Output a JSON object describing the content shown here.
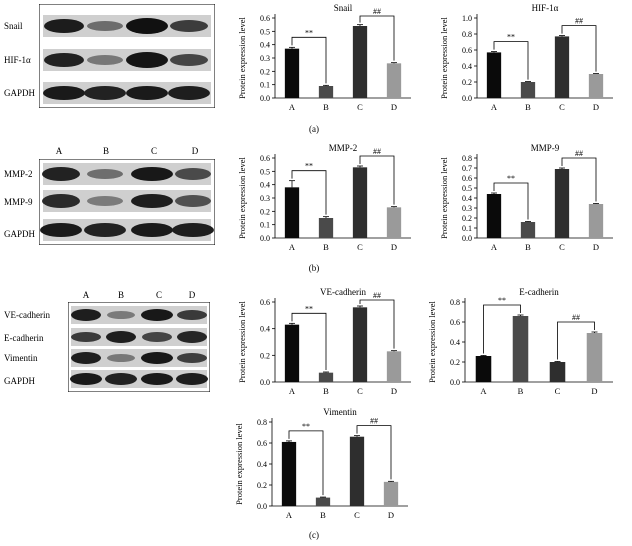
{
  "panels": [
    {
      "id": "a",
      "panel_label": "(a)",
      "blot": {
        "lane_letters": [],
        "bands": [
          "Snail",
          "HIF-1α",
          "GAPDH"
        ]
      }
    },
    {
      "id": "b",
      "panel_label": "(b)",
      "blot": {
        "lane_letters": [
          "A",
          "B",
          "C",
          "D"
        ],
        "bands": [
          "MMP-2",
          "MMP-9",
          "GAPDH"
        ]
      }
    },
    {
      "id": "c",
      "panel_label": "(c)",
      "blot": {
        "lane_letters": [
          "A",
          "B",
          "C",
          "D"
        ],
        "bands": [
          "VE-cadherin",
          "E-cadherin",
          "Vimentin",
          "GAPDH"
        ]
      }
    }
  ],
  "bar_colors": [
    "#0a0a0a",
    "#4a4a4a",
    "#2e2e2e",
    "#9a9a9a"
  ],
  "chart_data": [
    {
      "type": "bar",
      "title": "Snail",
      "ylabel": "Protein expression level",
      "categories": [
        "A",
        "B",
        "C",
        "D"
      ],
      "values": [
        0.37,
        0.09,
        0.54,
        0.26
      ],
      "errors": [
        0.01,
        0.005,
        0.01,
        0.005
      ],
      "ylim": [
        0,
        0.6
      ],
      "yticks": [
        "0.0",
        "0.1",
        "0.2",
        "0.3",
        "0.4",
        "0.5",
        "0.6"
      ],
      "brackets": [
        {
          "from": 0,
          "to": 1,
          "label": "**"
        },
        {
          "from": 2,
          "to": 3,
          "label": "##"
        }
      ]
    },
    {
      "type": "bar",
      "title": "HIF-1α",
      "ylabel": "Protein expression level",
      "categories": [
        "A",
        "B",
        "C",
        "D"
      ],
      "values": [
        0.57,
        0.2,
        0.77,
        0.3
      ],
      "errors": [
        0.01,
        0.005,
        0.01,
        0.005
      ],
      "ylim": [
        0,
        1.0
      ],
      "yticks": [
        "0.0",
        "0.2",
        "0.4",
        "0.6",
        "0.8",
        "1.0"
      ],
      "brackets": [
        {
          "from": 0,
          "to": 1,
          "label": "**"
        },
        {
          "from": 2,
          "to": 3,
          "label": "##"
        }
      ]
    },
    {
      "type": "bar",
      "title": "MMP-2",
      "ylabel": "Protein expression level",
      "categories": [
        "A",
        "B",
        "C",
        "D"
      ],
      "values": [
        0.38,
        0.15,
        0.53,
        0.23
      ],
      "errors": [
        0.05,
        0.01,
        0.01,
        0.005
      ],
      "ylim": [
        0,
        0.6
      ],
      "yticks": [
        "0.0",
        "0.1",
        "0.2",
        "0.3",
        "0.4",
        "0.5",
        "0.6"
      ],
      "brackets": [
        {
          "from": 0,
          "to": 1,
          "label": "**"
        },
        {
          "from": 2,
          "to": 3,
          "label": "##"
        }
      ]
    },
    {
      "type": "bar",
      "title": "MMP-9",
      "ylabel": "Protein expression level",
      "categories": [
        "A",
        "B",
        "C",
        "D"
      ],
      "values": [
        0.44,
        0.16,
        0.69,
        0.34
      ],
      "errors": [
        0.01,
        0.005,
        0.01,
        0.005
      ],
      "ylim": [
        0,
        0.8
      ],
      "yticks": [
        "0.0",
        "0.1",
        "0.2",
        "0.3",
        "0.4",
        "0.5",
        "0.6",
        "0.7",
        "0.8"
      ],
      "brackets": [
        {
          "from": 0,
          "to": 1,
          "label": "**"
        },
        {
          "from": 2,
          "to": 3,
          "label": "##"
        }
      ]
    },
    {
      "type": "bar",
      "title": "VE-cadherin",
      "ylabel": "Protein expression level",
      "categories": [
        "A",
        "B",
        "C",
        "D"
      ],
      "values": [
        0.43,
        0.07,
        0.56,
        0.23
      ],
      "errors": [
        0.01,
        0.005,
        0.01,
        0.005
      ],
      "ylim": [
        0,
        0.6
      ],
      "yticks": [
        "0.0",
        "0.2",
        "0.4",
        "0.6"
      ],
      "brackets": [
        {
          "from": 0,
          "to": 1,
          "label": "**"
        },
        {
          "from": 2,
          "to": 3,
          "label": "##"
        }
      ]
    },
    {
      "type": "bar",
      "title": "E-cadherin",
      "ylabel": "Protein expression level",
      "categories": [
        "A",
        "B",
        "C",
        "D"
      ],
      "values": [
        0.26,
        0.66,
        0.2,
        0.49
      ],
      "errors": [
        0.005,
        0.01,
        0.005,
        0.01
      ],
      "ylim": [
        0,
        0.8
      ],
      "yticks": [
        "0.0",
        "0.2",
        "0.4",
        "0.6",
        "0.8"
      ],
      "brackets": [
        {
          "from": 0,
          "to": 1,
          "label": "**"
        },
        {
          "from": 2,
          "to": 3,
          "label": "##"
        }
      ]
    },
    {
      "type": "bar",
      "title": "Vimentin",
      "ylabel": "Protein expression level",
      "categories": [
        "A",
        "B",
        "C",
        "D"
      ],
      "values": [
        0.61,
        0.08,
        0.66,
        0.23
      ],
      "errors": [
        0.01,
        0.005,
        0.01,
        0.005
      ],
      "ylim": [
        0,
        0.8
      ],
      "yticks": [
        "0.0",
        "0.2",
        "0.4",
        "0.6",
        "0.8"
      ],
      "brackets": [
        {
          "from": 0,
          "to": 1,
          "label": "**"
        },
        {
          "from": 2,
          "to": 3,
          "label": "##"
        }
      ]
    }
  ]
}
